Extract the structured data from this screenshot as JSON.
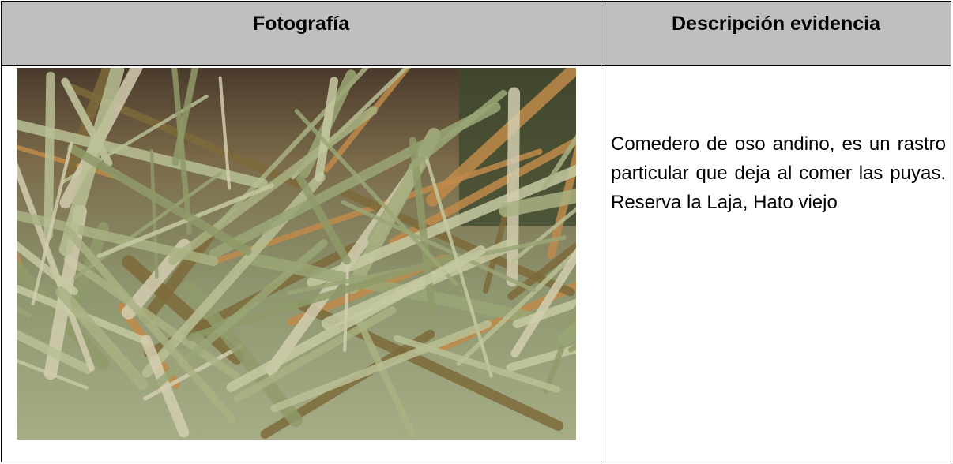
{
  "table": {
    "header": [
      "Fotografía",
      "Descripción evidencia"
    ],
    "rows": [
      [
        null,
        "Comedero de oso andino, es un rastro particular que deja al comer las puyas. Reserva la Laja, Hato viejo"
      ]
    ]
  }
}
